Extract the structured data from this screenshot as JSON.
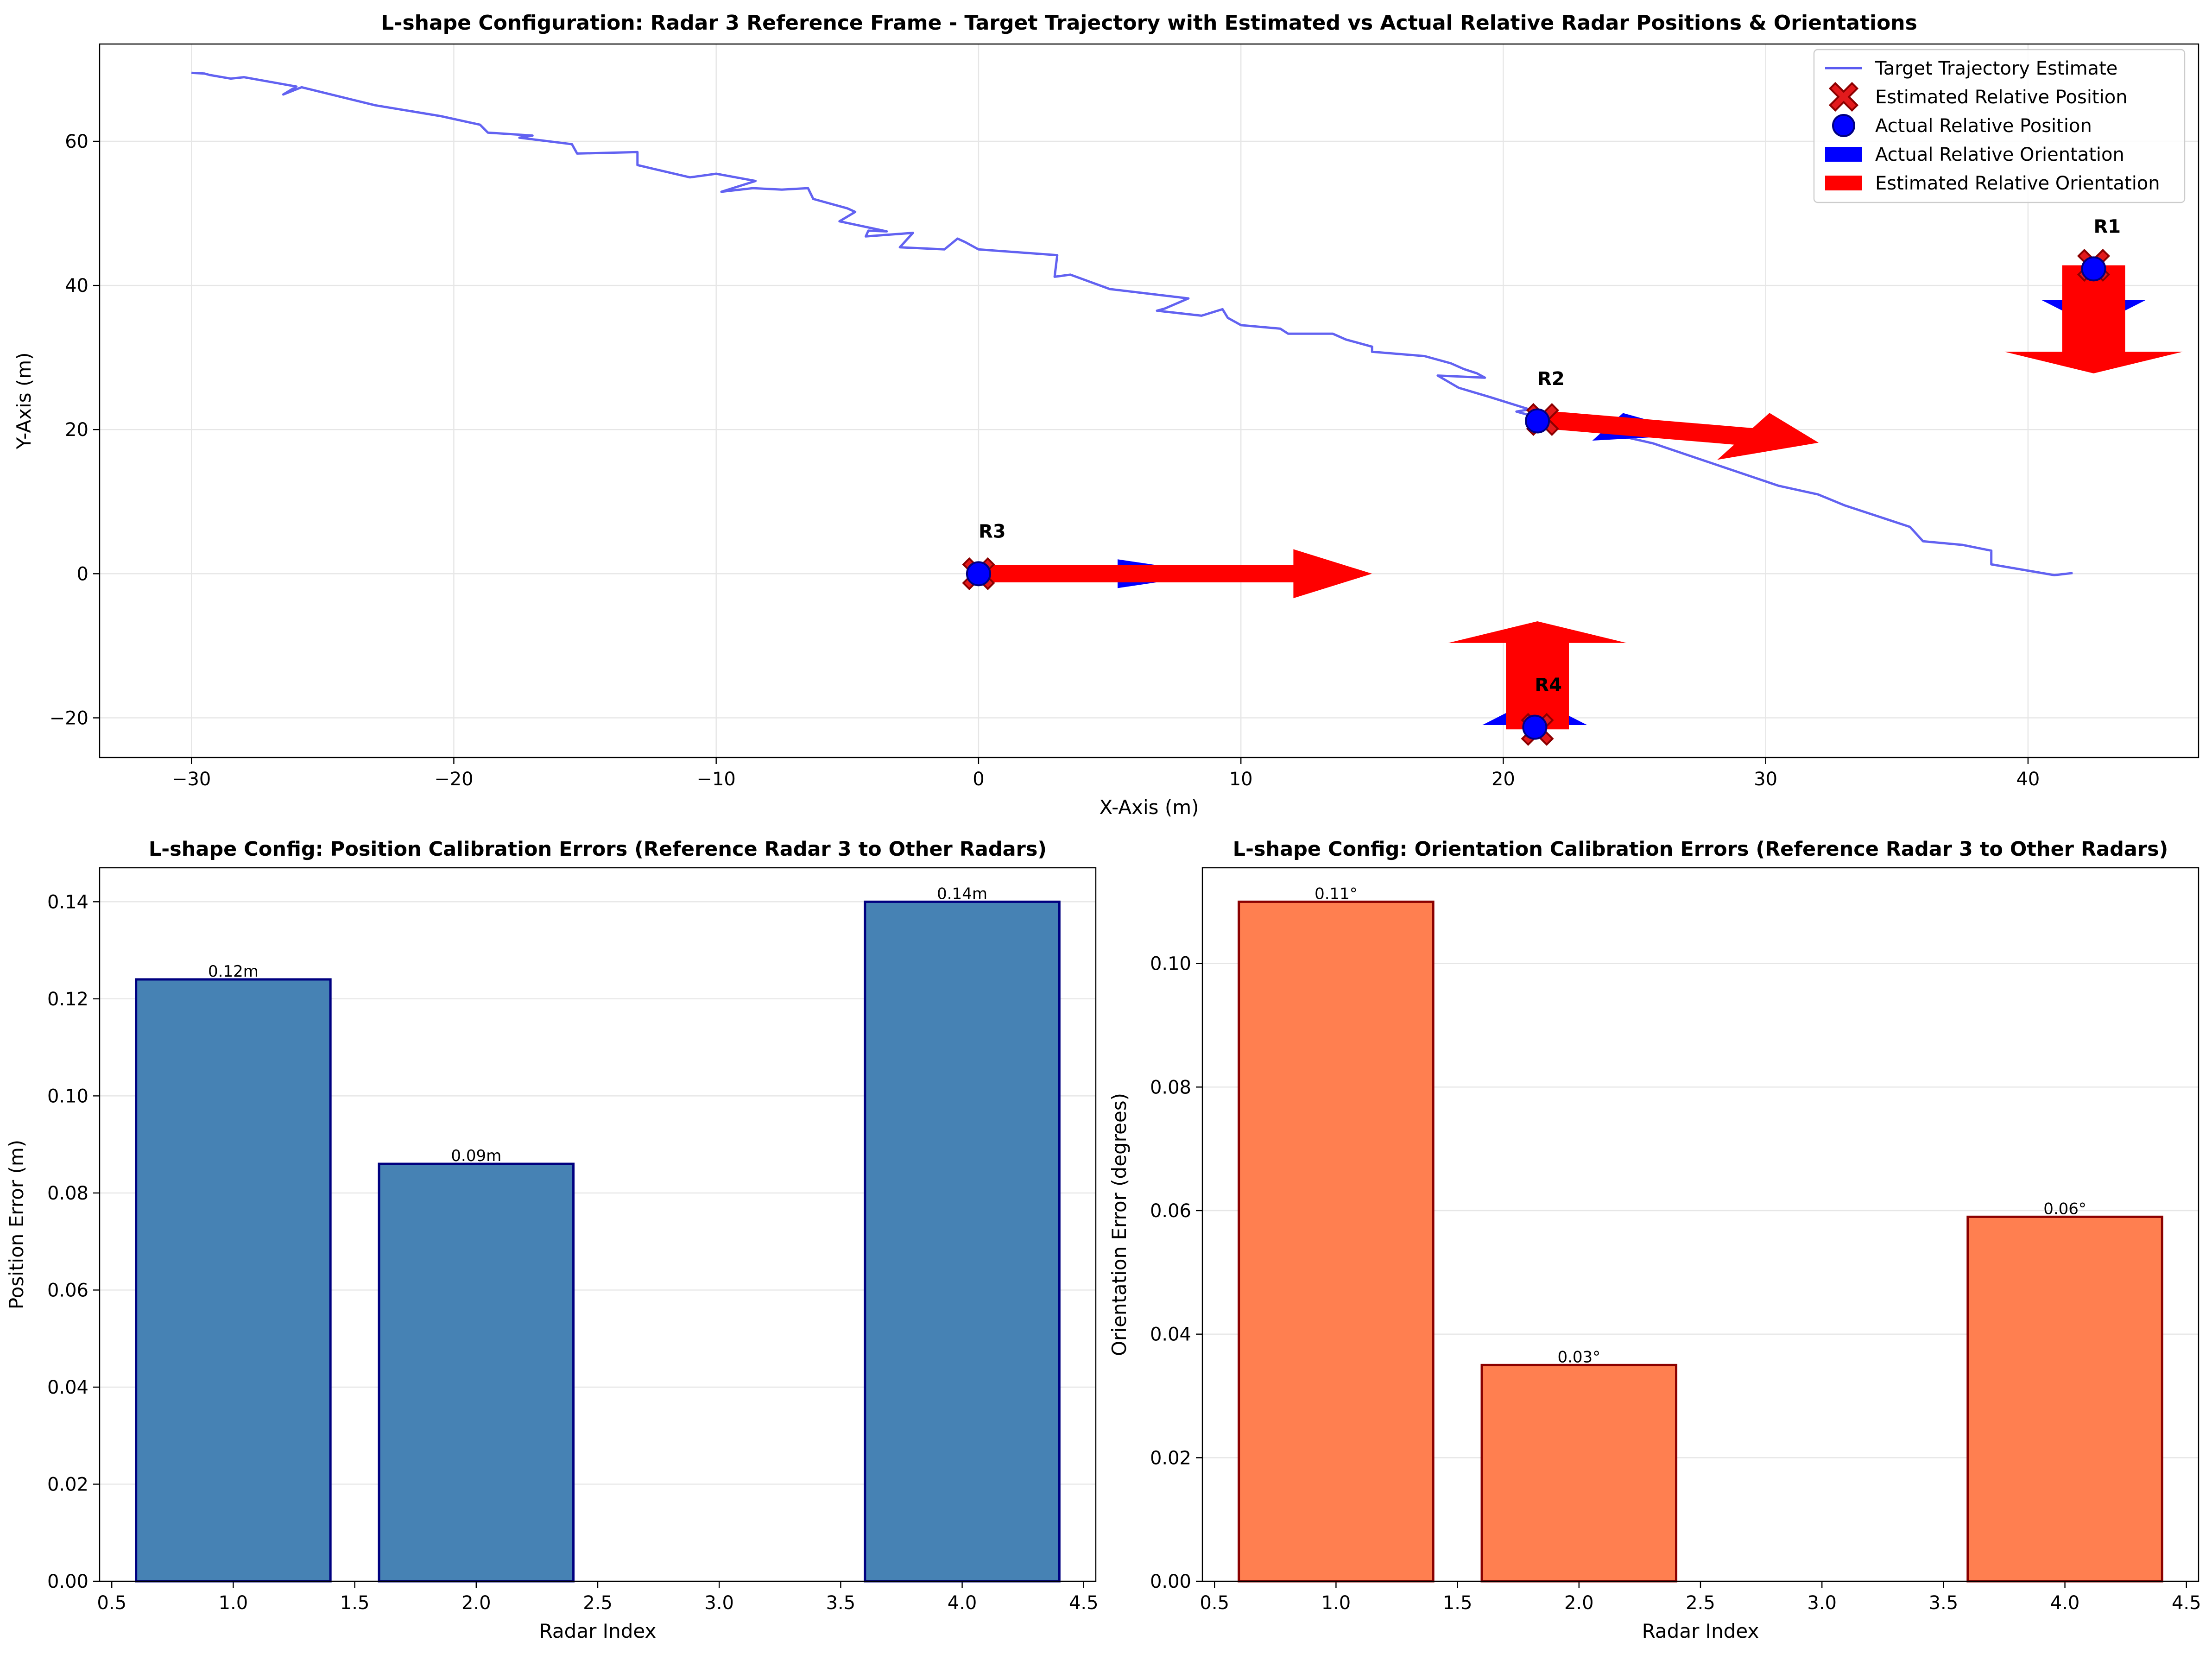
{
  "chart_data": [
    {
      "type": "line",
      "title": "L-shape Configuration: Radar 3 Reference Frame - Target Trajectory with Estimated vs Actual Relative Radar Positions & Orientations",
      "xlabel": "X-Axis (m)",
      "ylabel": "Y-Axis (m)",
      "xlim": [
        -33.5,
        46.5
      ],
      "ylim": [
        -25.5,
        73.5
      ],
      "xticks": [
        -30,
        -20,
        -10,
        0,
        10,
        20,
        30,
        40
      ],
      "yticks": [
        -20,
        0,
        20,
        40,
        60
      ],
      "grid": true,
      "legend_position": "top-right",
      "legend": [
        {
          "label": "Target Trajectory Estimate",
          "kind": "line",
          "color": "#5a5af0"
        },
        {
          "label": "Estimated Relative Position",
          "kind": "x-marker",
          "color": "#e31a1c"
        },
        {
          "label": "Actual Relative Position",
          "kind": "circle-marker",
          "color": "#0000ff"
        },
        {
          "label": "Actual Relative Orientation",
          "kind": "patch",
          "color": "#0000ff"
        },
        {
          "label": "Estimated Relative Orientation",
          "kind": "patch",
          "color": "#ff0000"
        }
      ],
      "trajectory": {
        "name": "Target Trajectory Estimate",
        "color": "#5a5af0",
        "points": [
          [
            -30,
            69.5
          ],
          [
            -29.5,
            69.4
          ],
          [
            -29.3,
            69.2
          ],
          [
            -28.5,
            68.7
          ],
          [
            -28,
            68.9
          ],
          [
            -26,
            67.6
          ],
          [
            -26.5,
            66.5
          ],
          [
            -25.8,
            67.5
          ],
          [
            -23,
            65
          ],
          [
            -20.5,
            63.5
          ],
          [
            -19,
            62.3
          ],
          [
            -18.7,
            61.2
          ],
          [
            -17,
            60.8
          ],
          [
            -17.5,
            60.5
          ],
          [
            -15.5,
            59.6
          ],
          [
            -15.3,
            58.3
          ],
          [
            -13,
            58.5
          ],
          [
            -13,
            56.7
          ],
          [
            -11,
            55
          ],
          [
            -10,
            55.5
          ],
          [
            -8.5,
            54.5
          ],
          [
            -9.8,
            53
          ],
          [
            -8.6,
            53.5
          ],
          [
            -7.5,
            53.3
          ],
          [
            -6.5,
            53.5
          ],
          [
            -6.3,
            52
          ],
          [
            -5,
            50.7
          ],
          [
            -4.7,
            50.2
          ],
          [
            -5.3,
            48.9
          ],
          [
            -3.5,
            47.5
          ],
          [
            -4.2,
            47.6
          ],
          [
            -4.3,
            46.8
          ],
          [
            -2.5,
            47.3
          ],
          [
            -3,
            45.3
          ],
          [
            -1.3,
            45
          ],
          [
            -0.8,
            46.5
          ],
          [
            -0.5,
            46
          ],
          [
            0,
            45
          ],
          [
            3,
            44.2
          ],
          [
            2.9,
            41.2
          ],
          [
            3.5,
            41.5
          ],
          [
            5,
            39.5
          ],
          [
            8,
            38.2
          ],
          [
            7.1,
            36.8
          ],
          [
            6.8,
            36.5
          ],
          [
            8.5,
            35.8
          ],
          [
            9.3,
            36.7
          ],
          [
            9.5,
            35.5
          ],
          [
            10,
            34.5
          ],
          [
            11.5,
            34
          ],
          [
            11.8,
            33.3
          ],
          [
            13.5,
            33.3
          ],
          [
            14,
            32.5
          ],
          [
            15,
            31.5
          ],
          [
            15,
            30.8
          ],
          [
            17,
            30.2
          ],
          [
            18,
            29.2
          ],
          [
            18.5,
            28.4
          ],
          [
            19,
            27.8
          ],
          [
            19.3,
            27.2
          ],
          [
            17.5,
            27.5
          ],
          [
            18.3,
            25.8
          ],
          [
            19.5,
            24.5
          ],
          [
            21,
            22.8
          ],
          [
            20.5,
            22.5
          ],
          [
            21,
            22
          ],
          [
            22.3,
            21.2
          ],
          [
            24,
            19.5
          ],
          [
            25.7,
            18.1
          ],
          [
            30.5,
            12.2
          ],
          [
            32,
            11
          ],
          [
            33,
            9.5
          ],
          [
            35.5,
            6.5
          ],
          [
            36,
            4.5
          ],
          [
            37.5,
            4
          ],
          [
            38.6,
            3.2
          ],
          [
            38.6,
            1.3
          ],
          [
            41,
            -0.2
          ],
          [
            41.7,
            0.1
          ]
        ]
      },
      "radars": [
        {
          "label": "R1",
          "actual_position": [
            42.5,
            42.3
          ],
          "estimated_position": [
            42.5,
            42.8
          ],
          "actual_orientation_deg": -90,
          "estimated_orientation_deg": -90,
          "actual_length": 8,
          "estimated_length": 15
        },
        {
          "label": "R2",
          "actual_position": [
            21.3,
            21.2
          ],
          "estimated_position": [
            21.5,
            21.4
          ],
          "actual_orientation_deg": -17,
          "estimated_orientation_deg": -17,
          "actual_length": 6.5,
          "estimated_length": 11
        },
        {
          "label": "R3",
          "actual_position": [
            0,
            0
          ],
          "estimated_position": [
            0,
            0
          ],
          "actual_orientation_deg": 0,
          "estimated_orientation_deg": 0,
          "actual_length": 9,
          "estimated_length": 15
        },
        {
          "label": "R4",
          "actual_position": [
            21.2,
            -21.3
          ],
          "estimated_position": [
            21.3,
            -21.6
          ],
          "actual_orientation_deg": 90,
          "estimated_orientation_deg": 90,
          "actual_length": 4,
          "estimated_length": 15
        }
      ]
    },
    {
      "type": "bar",
      "title": "L-shape Config: Position Calibration Errors (Reference Radar 3 to Other Radars)",
      "xlabel": "Radar Index",
      "ylabel": "Position Error (m)",
      "xlim": [
        0.45,
        4.55
      ],
      "ylim": [
        0,
        0.147
      ],
      "xticks": [
        0.5,
        1.0,
        1.5,
        2.0,
        2.5,
        3.0,
        3.5,
        4.0,
        4.5
      ],
      "xtick_labels": [
        "0.5",
        "1.0",
        "1.5",
        "2.0",
        "2.5",
        "3.0",
        "3.5",
        "4.0",
        "4.5"
      ],
      "yticks": [
        0,
        0.02,
        0.04,
        0.06,
        0.08,
        0.1,
        0.12,
        0.14
      ],
      "ytick_labels": [
        "0.00",
        "0.02",
        "0.04",
        "0.06",
        "0.08",
        "0.10",
        "0.12",
        "0.14"
      ],
      "bar_width": 0.8,
      "grid": true,
      "color": "#4682b4",
      "edge_color": "#000080",
      "bars": [
        {
          "x": 1,
          "value": 0.124,
          "label": "0.12m"
        },
        {
          "x": 2,
          "value": 0.086,
          "label": "0.09m"
        },
        {
          "x": 4,
          "value": 0.14,
          "label": "0.14m"
        }
      ]
    },
    {
      "type": "bar",
      "title": "L-shape Config: Orientation Calibration Errors (Reference Radar 3 to Other Radars)",
      "xlabel": "Radar Index",
      "ylabel": "Orientation Error (degrees)",
      "xlim": [
        0.45,
        4.55
      ],
      "ylim": [
        0,
        0.1155
      ],
      "xticks": [
        0.5,
        1.0,
        1.5,
        2.0,
        2.5,
        3.0,
        3.5,
        4.0,
        4.5
      ],
      "xtick_labels": [
        "0.5",
        "1.0",
        "1.5",
        "2.0",
        "2.5",
        "3.0",
        "3.5",
        "4.0",
        "4.5"
      ],
      "yticks": [
        0,
        0.02,
        0.04,
        0.06,
        0.08,
        0.1
      ],
      "ytick_labels": [
        "0.00",
        "0.02",
        "0.04",
        "0.06",
        "0.08",
        "0.10"
      ],
      "bar_width": 0.8,
      "grid": true,
      "color": "#ff7f50",
      "edge_color": "#8b0000",
      "bars": [
        {
          "x": 1,
          "value": 0.11,
          "label": "0.11°"
        },
        {
          "x": 2,
          "value": 0.035,
          "label": "0.03°"
        },
        {
          "x": 4,
          "value": 0.059,
          "label": "0.06°"
        }
      ]
    }
  ]
}
